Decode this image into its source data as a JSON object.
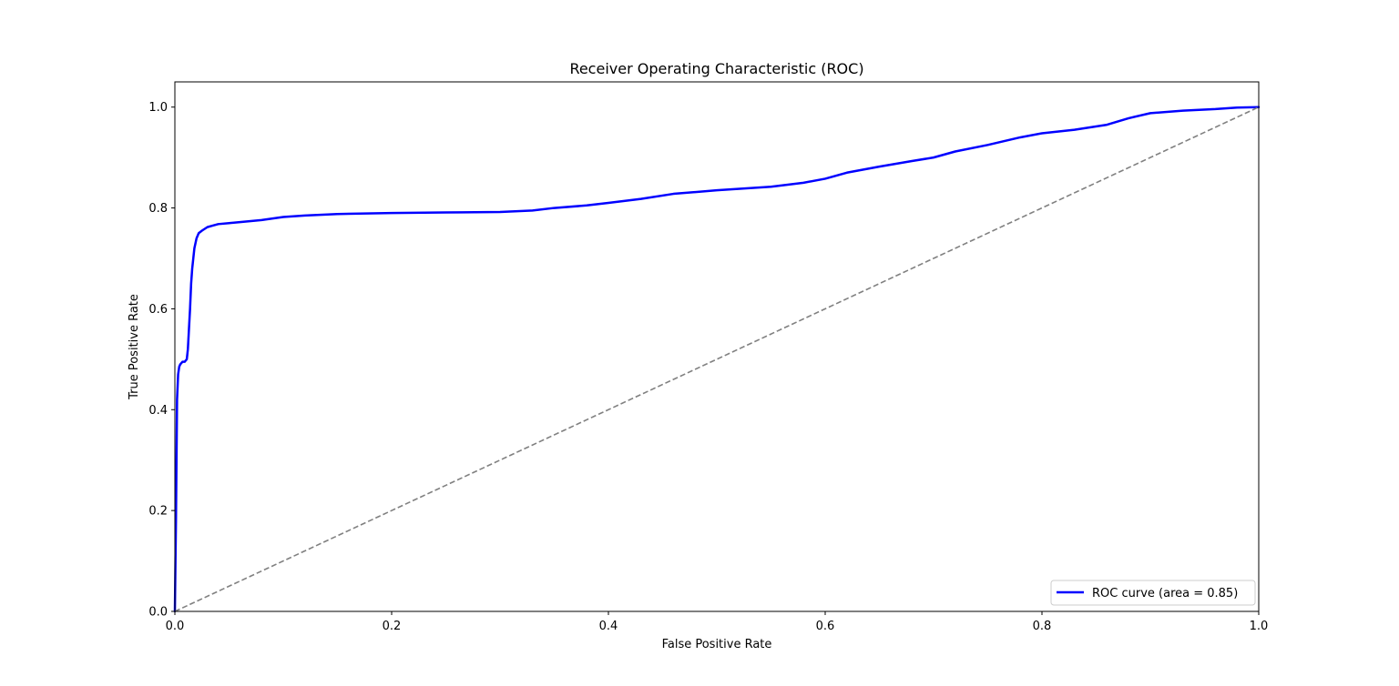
{
  "chart_data": {
    "type": "line",
    "title": "Receiver Operating Characteristic (ROC)",
    "xlabel": "False Positive Rate",
    "ylabel": "True Positive Rate",
    "xlim": [
      0.0,
      1.0
    ],
    "ylim": [
      0.0,
      1.05
    ],
    "x_ticks": [
      0.0,
      0.2,
      0.4,
      0.6,
      0.8,
      1.0
    ],
    "y_ticks": [
      0.0,
      0.2,
      0.4,
      0.6,
      0.8,
      1.0
    ],
    "x_tick_labels": [
      "0.0",
      "0.2",
      "0.4",
      "0.6",
      "0.8",
      "1.0"
    ],
    "y_tick_labels": [
      "0.0",
      "0.2",
      "0.4",
      "0.6",
      "0.8",
      "1.0"
    ],
    "grid": false,
    "legend_position": "lower-right",
    "series": [
      {
        "name": "ROC curve (area = 0.85)",
        "color": "#0000ff",
        "line_style": "solid",
        "x": [
          0.0,
          0.001,
          0.002,
          0.003,
          0.004,
          0.005,
          0.007,
          0.009,
          0.011,
          0.012,
          0.013,
          0.014,
          0.015,
          0.016,
          0.017,
          0.018,
          0.019,
          0.02,
          0.022,
          0.025,
          0.03,
          0.035,
          0.04,
          0.05,
          0.06,
          0.07,
          0.08,
          0.1,
          0.12,
          0.15,
          0.2,
          0.25,
          0.3,
          0.33,
          0.35,
          0.38,
          0.4,
          0.43,
          0.46,
          0.5,
          0.55,
          0.58,
          0.6,
          0.62,
          0.65,
          0.68,
          0.7,
          0.72,
          0.75,
          0.78,
          0.8,
          0.83,
          0.86,
          0.88,
          0.9,
          0.93,
          0.96,
          0.98,
          1.0
        ],
        "y": [
          0.0,
          0.18,
          0.42,
          0.47,
          0.485,
          0.49,
          0.495,
          0.495,
          0.5,
          0.52,
          0.56,
          0.6,
          0.65,
          0.68,
          0.7,
          0.72,
          0.73,
          0.74,
          0.75,
          0.755,
          0.762,
          0.765,
          0.768,
          0.77,
          0.772,
          0.774,
          0.776,
          0.782,
          0.785,
          0.788,
          0.79,
          0.791,
          0.792,
          0.795,
          0.8,
          0.805,
          0.81,
          0.818,
          0.828,
          0.835,
          0.842,
          0.85,
          0.858,
          0.87,
          0.882,
          0.893,
          0.9,
          0.912,
          0.925,
          0.94,
          0.948,
          0.955,
          0.965,
          0.978,
          0.988,
          0.993,
          0.996,
          0.999,
          1.0
        ]
      },
      {
        "name": "",
        "color": "#808080",
        "line_style": "dashed",
        "x": [
          0.0,
          1.0
        ],
        "y": [
          0.0,
          1.0
        ]
      }
    ]
  }
}
